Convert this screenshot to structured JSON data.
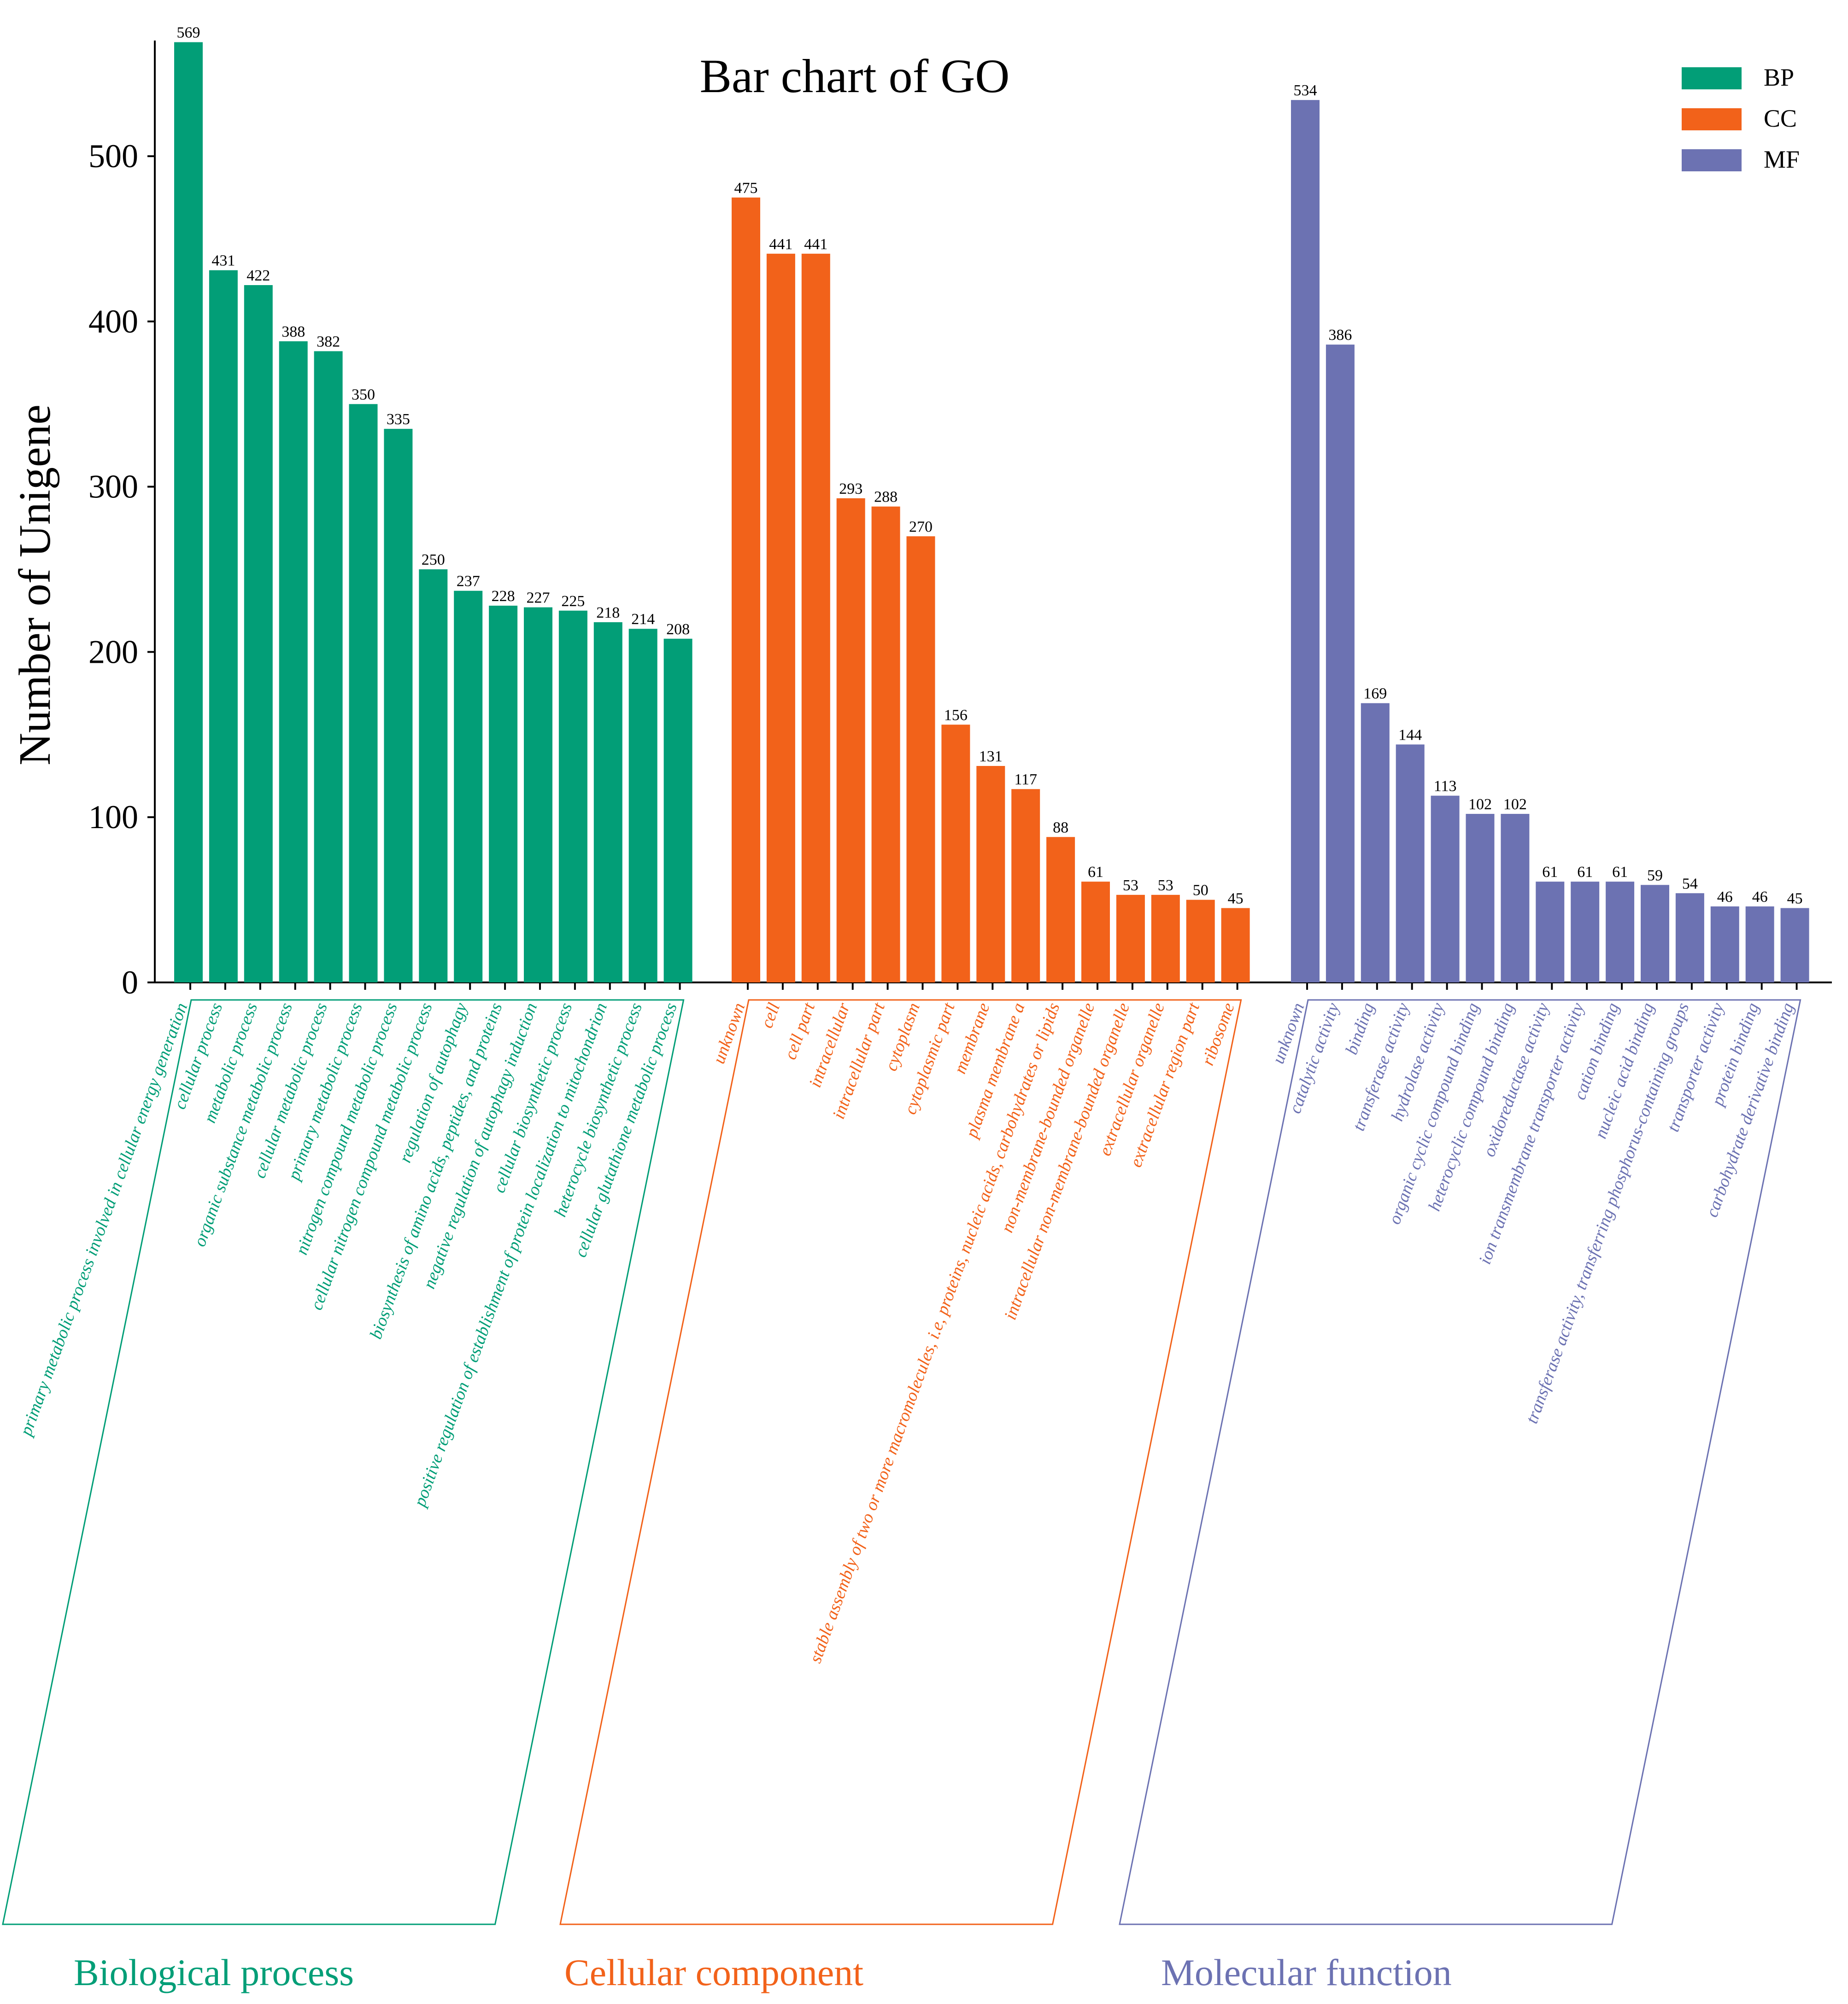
{
  "chart_data": {
    "type": "bar",
    "title": "Bar chart of GO",
    "ylabel": "Number of  Unigene",
    "ylim": [
      0,
      570
    ],
    "yticks": [
      0,
      100,
      200,
      300,
      400,
      500
    ],
    "legend": [
      {
        "key": "BP",
        "label": "BP",
        "color": "#029E77"
      },
      {
        "key": "CC",
        "label": "CC",
        "color": "#F2621A"
      },
      {
        "key": "MF",
        "label": "MF",
        "color": "#6C72B2"
      }
    ],
    "groups": [
      {
        "key": "BP",
        "name": "Biological process",
        "color": "#029E77",
        "categories": [
          "primary metabolic process involved in cellular energy generation",
          "cellular process",
          "metabolic process",
          "organic substance metabolic process",
          "cellular metabolic process",
          "primary metabolic process",
          "nitrogen compound metabolic process",
          "cellular nitrogen compound metabolic process",
          "regulation of autophagy",
          "biosynthesis of amino acids, peptides, and proteins",
          "negative regulation of autophagy induction",
          "cellular biosynthetic process",
          "positive regulation of establishment of protein localization to mitochondrion",
          "heterocycle biosynthetic process",
          "cellular glutathione metabolic process"
        ],
        "values": [
          569,
          431,
          422,
          388,
          382,
          350,
          335,
          250,
          237,
          228,
          227,
          225,
          218,
          214,
          208
        ]
      },
      {
        "key": "CC",
        "name": "Cellular component",
        "color": "#F2621A",
        "categories": [
          "unknown",
          "cell",
          "cell part",
          "intracellular",
          "intracellular part",
          "cytoplasm",
          "cytoplasmic part",
          "membrane",
          "plasma membrane a",
          "stable assembly of two or more macromolecules, i.e, proteins, nucleic acids, carbohydrates or lipids",
          "non-membrane-bounded organelle",
          "intracellular non-membrane-bounded organelle",
          "extracellular organelle",
          "extracellular region part",
          "ribosome"
        ],
        "values": [
          475,
          441,
          441,
          293,
          288,
          270,
          156,
          131,
          117,
          88,
          61,
          53,
          53,
          50,
          45
        ]
      },
      {
        "key": "MF",
        "name": "Molecular function",
        "color": "#6C72B2",
        "categories": [
          "unknown",
          "catalytic activity",
          "binding",
          "transferase activity",
          "hydrolase activity",
          "organic cyclic compound binding",
          "heterocyclic compound binding",
          "oxidoreductase activity",
          "ion transmembrane transporter activity",
          "cation binding",
          "nucleic acid binding",
          "transferase activity, transferring phosphorus-containing groups",
          "transporter activity",
          "protein binding",
          "carbohydrate derivative binding"
        ],
        "values": [
          534,
          386,
          169,
          144,
          113,
          102,
          102,
          61,
          61,
          61,
          59,
          54,
          46,
          46,
          45
        ]
      }
    ]
  }
}
